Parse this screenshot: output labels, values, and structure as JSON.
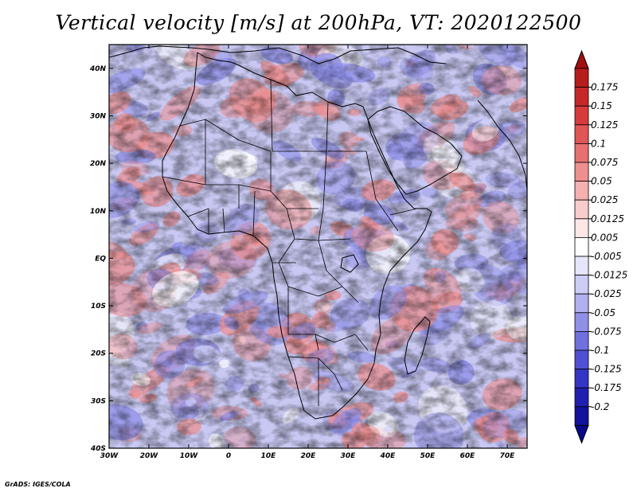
{
  "title": "Vertical velocity [m/s] at 200hPa, VT: 2020122500",
  "credit": "GrADS: IGES/COLA",
  "map": {
    "lon_range": [
      -30,
      75
    ],
    "lat_range": [
      -40,
      45
    ],
    "lon_ticks": [
      {
        "value": -30,
        "label": "30W"
      },
      {
        "value": -20,
        "label": "20W"
      },
      {
        "value": -10,
        "label": "10W"
      },
      {
        "value": 0,
        "label": "0"
      },
      {
        "value": 10,
        "label": "10E"
      },
      {
        "value": 20,
        "label": "20E"
      },
      {
        "value": 30,
        "label": "30E"
      },
      {
        "value": 40,
        "label": "40E"
      },
      {
        "value": 50,
        "label": "50E"
      },
      {
        "value": 60,
        "label": "60E"
      },
      {
        "value": 70,
        "label": "70E"
      }
    ],
    "lat_ticks": [
      {
        "value": 40,
        "label": "40N"
      },
      {
        "value": 30,
        "label": "30N"
      },
      {
        "value": 20,
        "label": "20N"
      },
      {
        "value": 10,
        "label": "10N"
      },
      {
        "value": 0,
        "label": "EQ"
      },
      {
        "value": -10,
        "label": "10S"
      },
      {
        "value": -20,
        "label": "20S"
      },
      {
        "value": -30,
        "label": "30S"
      },
      {
        "value": -40,
        "label": "40S"
      }
    ]
  },
  "colorbar": {
    "bins": [
      {
        "color": "#b71c1c"
      },
      {
        "color": "#c62828"
      },
      {
        "color": "#d63a3a"
      },
      {
        "color": "#e05555"
      },
      {
        "color": "#e87070"
      },
      {
        "color": "#ef8f8f"
      },
      {
        "color": "#f5b0b0"
      },
      {
        "color": "#f9cccc"
      },
      {
        "color": "#fce6e6"
      },
      {
        "color": "#ffffff"
      },
      {
        "color": "#e6e6fb"
      },
      {
        "color": "#ccccf5"
      },
      {
        "color": "#b0b0ee"
      },
      {
        "color": "#9090e6"
      },
      {
        "color": "#7070de"
      },
      {
        "color": "#5050d4"
      },
      {
        "color": "#3535c5"
      },
      {
        "color": "#2020b0"
      },
      {
        "color": "#12129a"
      }
    ],
    "top_triangle_color": "#a01010",
    "bottom_triangle_color": "#0a0a88",
    "labels": [
      "0.175",
      "0.15",
      "0.125",
      "0.1",
      "0.075",
      "0.05",
      "0.025",
      "0.0125",
      "0.005",
      "-0.005",
      "-0.0125",
      "-0.025",
      "-0.05",
      "-0.075",
      "-0.1",
      "-0.125",
      "-0.175",
      "-0.2"
    ]
  },
  "colors": {
    "background_white": "#ffffff",
    "field_blue": "#8c8ce8",
    "field_red": "#ec8c8c",
    "coastline": "#000000"
  }
}
